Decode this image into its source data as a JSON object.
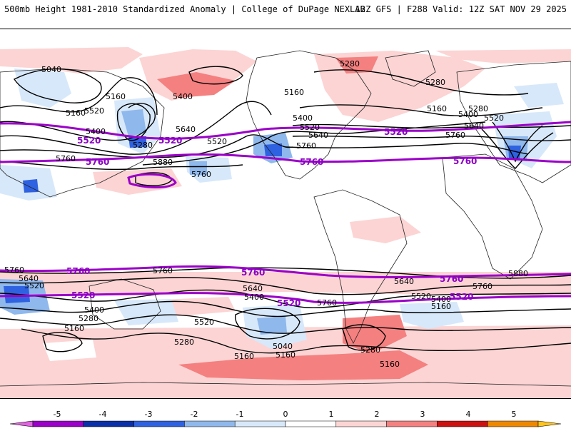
{
  "header": {
    "title": "500mb Height 1981-2010 Standardized Anomaly | College of DuPage NEXLAB",
    "run_info": "12Z GFS | F288 Valid: 12Z SAT NOV 29 2025"
  },
  "colors": {
    "black_contour": "#000000",
    "purple_contour": "#9b00c8",
    "coast": "#222222"
  },
  "colorbar": {
    "ticks": [
      "-5",
      "-4",
      "-3",
      "-2",
      "-1",
      "0",
      "1",
      "2",
      "3",
      "4",
      "5"
    ],
    "colors": [
      "#e066e0",
      "#9b00c8",
      "#0a2fa8",
      "#2f62e0",
      "#8fb8ec",
      "#d7e8fa",
      "#ffffff",
      "#fcd4d4",
      "#f48080",
      "#cc1111",
      "#ee8800",
      "#ffc422"
    ]
  },
  "map": {
    "purple_labels": [
      "5520",
      "5760",
      "5520",
      "5760",
      "5760",
      "5760",
      "5520",
      "5760",
      "5520",
      "5520",
      "5760",
      "5520"
    ],
    "contour_labels": [
      "5040",
      "5160",
      "5160",
      "5400",
      "5520",
      "5280",
      "5760",
      "5880",
      "5760",
      "5640",
      "5520",
      "5400",
      "5280",
      "5160",
      "5400",
      "5520",
      "5640",
      "5760",
      "5280",
      "5160",
      "5280",
      "5400",
      "5520",
      "5640",
      "5760",
      "5760",
      "5640",
      "5520",
      "5400",
      "5280",
      "5160",
      "5760",
      "5640",
      "5400",
      "5520",
      "5280",
      "5160",
      "5040",
      "5160",
      "5760",
      "5280",
      "5160",
      "5640",
      "5520",
      "5400",
      "5160",
      "5760",
      "5880"
    ]
  }
}
